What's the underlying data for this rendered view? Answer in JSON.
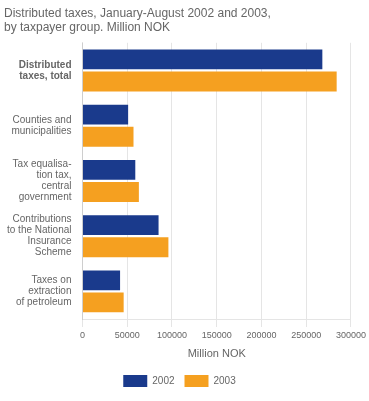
{
  "chart_data": {
    "type": "bar",
    "orientation": "horizontal",
    "title": "Distributed taxes, January-August 2002 and 2003,\nby taxpayer group. Million NOK",
    "categories": [
      "Distributed\ntaxes, total",
      "Counties and\nmunicipalities",
      "Tax equalisa-\ntion tax,\ncentral\ngovernment",
      "Contributions\nto the National\nInsurance\nScheme",
      "Taxes on\nextraction\nof petroleum"
    ],
    "series": [
      {
        "name": "2002",
        "color": "#1a3a8c",
        "values": [
          268000,
          51000,
          59000,
          85000,
          42000
        ]
      },
      {
        "name": "2003",
        "color": "#f5a020",
        "values": [
          284000,
          57000,
          63000,
          96000,
          46000
        ]
      }
    ],
    "xlabel": "Million NOK",
    "xlim": [
      0,
      300000
    ],
    "xticks": [
      0,
      50000,
      100000,
      150000,
      200000,
      250000,
      300000
    ],
    "grid": true,
    "legend": "bottom"
  }
}
